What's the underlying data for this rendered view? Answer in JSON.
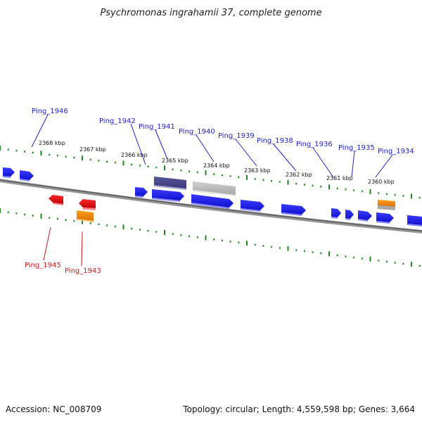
{
  "title": "Psychromonas ingrahamii 37, complete genome",
  "footer": {
    "accession": "Accession: NC_008709",
    "summary": "Topology: circular; Length: 4,559,598 bp; Genes: 3,664"
  },
  "scale_labels": [
    "2368 kbp",
    "2367 kbp",
    "2366 kbp",
    "2365 kbp",
    "2364 kbp",
    "2363 kbp",
    "2362 kbp",
    "2361 kbp",
    "2360 kbp"
  ],
  "gene_labels_top": [
    "Ping_1946",
    "Ping_1942",
    "Ping_1941",
    "Ping_1940",
    "Ping_1939",
    "Ping_1938",
    "Ping_1936",
    "Ping_1935",
    "Ping_1934"
  ],
  "gene_labels_bottom": [
    "Ping_1945",
    "Ping_1943"
  ],
  "colors": {
    "forward_gene": "#1a1aee",
    "reverse_gene": "#e81010",
    "highlight_purple": "#4a4a8c",
    "highlight_gray": "#b8b8b8",
    "rna_orange": "#f08a00",
    "backbone": "#777777",
    "ticks": "#1e8a1e",
    "label_blue": "#1f1fd0",
    "label_red": "#d01818"
  }
}
